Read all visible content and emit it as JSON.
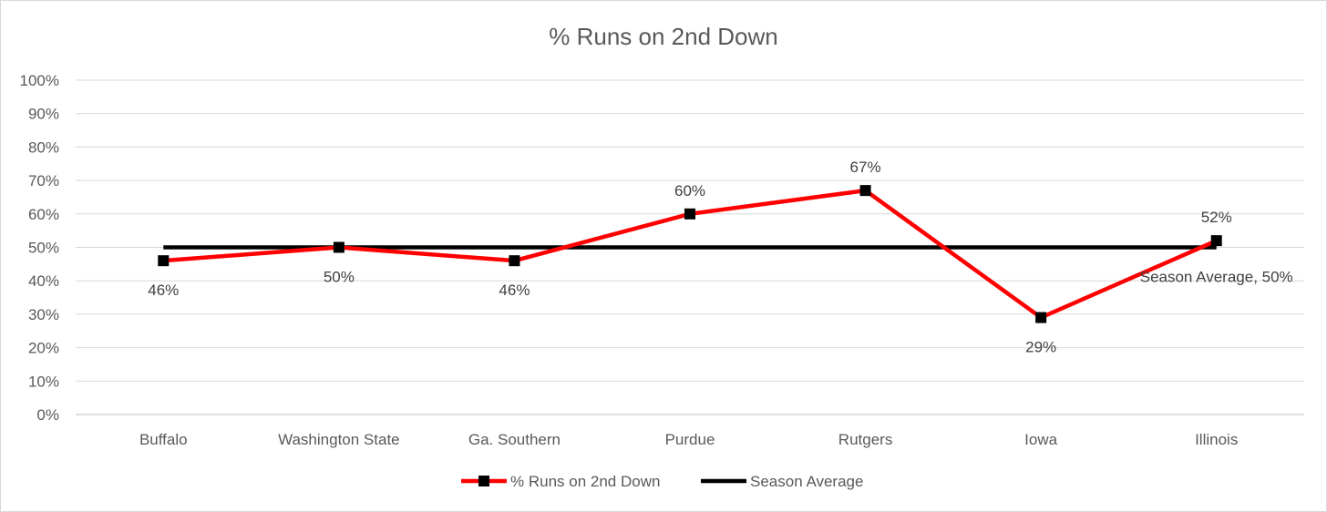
{
  "chart_data": {
    "type": "line",
    "title": "% Runs on 2nd Down",
    "xlabel": "",
    "ylabel": "",
    "categories": [
      "Buffalo",
      "Washington State",
      "Ga. Southern",
      "Purdue",
      "Rutgers",
      "Iowa",
      "Illinois"
    ],
    "ylim": [
      0,
      100
    ],
    "y_ticks": [
      "0%",
      "10%",
      "20%",
      "30%",
      "40%",
      "50%",
      "60%",
      "70%",
      "80%",
      "90%",
      "100%"
    ],
    "grid": true,
    "legend_position": "bottom",
    "series": [
      {
        "name": "% Runs on 2nd Down",
        "color": "#ff0000",
        "marker": "square",
        "marker_color": "#000000",
        "values": [
          46,
          50,
          46,
          60,
          67,
          29,
          52
        ],
        "data_labels": [
          "46%",
          "50%",
          "46%",
          "60%",
          "67%",
          "29%",
          "52%"
        ]
      },
      {
        "name": "Season Average",
        "color": "#000000",
        "values": [
          50,
          50,
          50,
          50,
          50,
          50,
          50
        ],
        "end_label": "Season Average, 50%"
      }
    ],
    "colors": {
      "gridline": "#d9d9d9",
      "axis_line": "#bfbfbf"
    }
  }
}
